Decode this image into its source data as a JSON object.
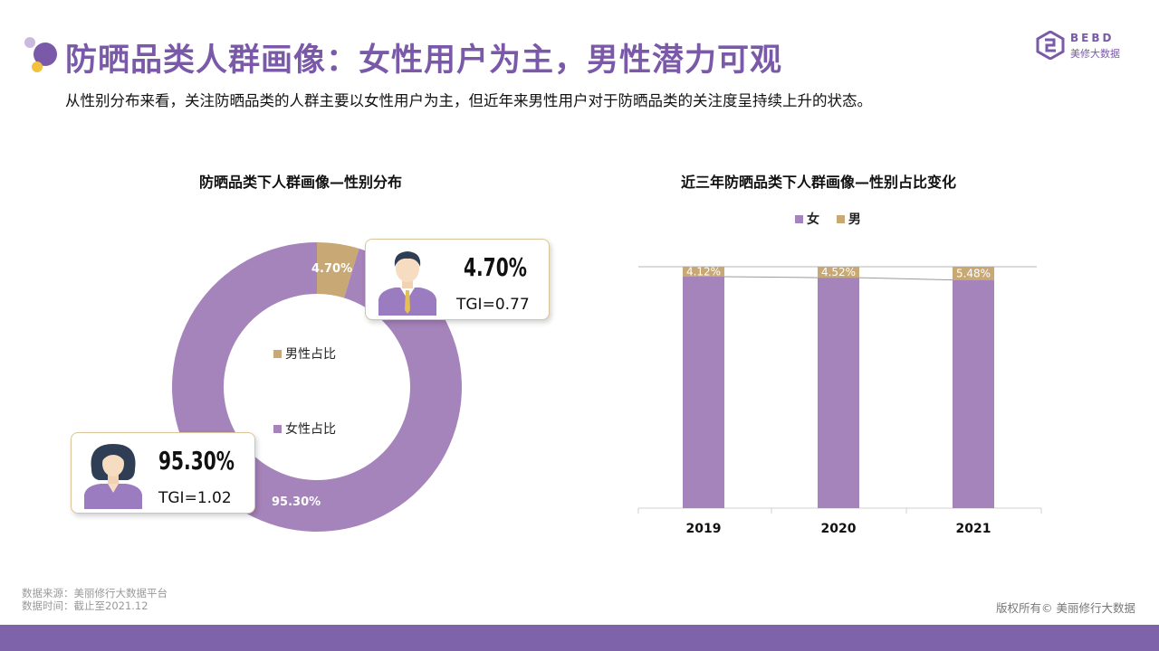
{
  "header": {
    "title": "防晒品类人群画像：女性用户为主，男性潜力可观",
    "subtitle": "从性别分布来看，关注防晒品类的人群主要以女性用户为主，但近年来男性用户对于防晒品类的关注度呈持续上升的状态。"
  },
  "logo": {
    "name": "BEBD",
    "sub": "美修大数据"
  },
  "colors": {
    "female": "#a583bb",
    "male": "#c8a874",
    "accent": "#7a5aa8",
    "card_border": "#d9c59a"
  },
  "donut": {
    "title": "防晒品类下人群画像—性别分布",
    "male_label": "4.70%",
    "female_label": "95.30%",
    "legend": {
      "male": "男性占比",
      "female": "女性占比"
    },
    "male_card": {
      "pct": "4.70%",
      "tgi": "TGI=0.77",
      "icon": "male-avatar-icon"
    },
    "female_card": {
      "pct": "95.30%",
      "tgi": "TGI=1.02",
      "icon": "female-avatar-icon"
    }
  },
  "bar": {
    "title": "近三年防晒品类下人群画像—性别占比变化",
    "legend": {
      "female": "女",
      "male": "男"
    }
  },
  "chart_data": [
    {
      "type": "pie",
      "title": "防晒品类下人群画像—性别分布",
      "donut": true,
      "slices": [
        {
          "name": "男性占比",
          "value": 4.7
        },
        {
          "name": "女性占比",
          "value": 95.3
        }
      ]
    },
    {
      "type": "bar",
      "stacked": true,
      "percent_stacked": true,
      "title": "近三年防晒品类下人群画像—性别占比变化",
      "categories": [
        "2019",
        "2020",
        "2021"
      ],
      "series": [
        {
          "name": "女",
          "values": [
            95.88,
            95.48,
            94.52
          ]
        },
        {
          "name": "男",
          "values": [
            4.12,
            4.52,
            5.48
          ]
        }
      ],
      "data_labels": {
        "男": [
          "4.12%",
          "4.52%",
          "5.48%"
        ]
      },
      "ylim": [
        0,
        100
      ],
      "legend": "top",
      "grid": false
    }
  ],
  "footer": {
    "source_line1": "数据来源：美丽修行大数据平台",
    "source_line2": "数据时间：截止至2021.12",
    "copyright": "版权所有© 美丽修行大数据"
  }
}
